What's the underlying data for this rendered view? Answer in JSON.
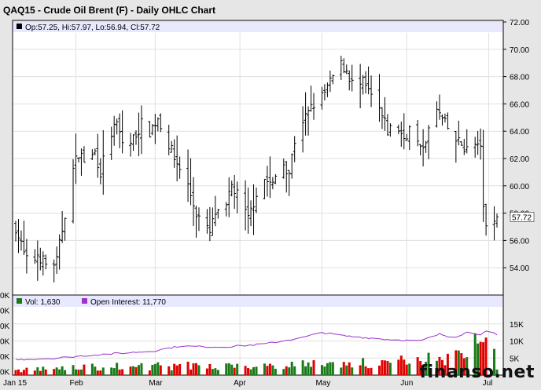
{
  "title": "QAQ15 - Crude Oil Brent (F) - Daily OHLC Chart",
  "price_legend": "Op:57.25, Hi:57.97, Lo:56.94, Cl:57.72",
  "last_price_label": "57.72",
  "volume_legend": "Vol: 1,630",
  "oi_legend": "Open Interest: 11,770",
  "watermark": "finanso.net",
  "colors": {
    "background": "#e6e6e6",
    "panel": "#ffffff",
    "legend_bar": "#e8e8ff",
    "bar": "#000000",
    "volume_up": "#1a7a1a",
    "volume_down": "#e00000",
    "open_interest": "#9933cc",
    "grid": "#e0e0e0"
  },
  "chart_data": {
    "type": "ohlc",
    "price_axis": {
      "min": 52,
      "max": 72,
      "ticks": [
        "54.00",
        "56.00",
        "58.00",
        "60.00",
        "62.00",
        "64.00",
        "66.00",
        "68.00",
        "70.00",
        "72.00"
      ],
      "side": "right"
    },
    "volume_axis": {
      "ticks_right": [
        "5K",
        "10K",
        "15K"
      ],
      "ticks_left": [
        "0K",
        "0K",
        "0K",
        "0K",
        "0K",
        "0K"
      ]
    },
    "x_labels": [
      "Jan 15",
      "Feb",
      "Mar",
      "Apr",
      "May",
      "Jun",
      "Jul"
    ],
    "x_label_days": [
      0,
      22,
      51,
      82,
      112,
      143,
      173
    ],
    "grid": true,
    "legend_position": "top-left",
    "price_anchors": [
      [
        0,
        57.0
      ],
      [
        3,
        55.0
      ],
      [
        5,
        54.0
      ],
      [
        8,
        55.0
      ],
      [
        12,
        54.0
      ],
      [
        15,
        54.5
      ],
      [
        18,
        58.0
      ],
      [
        20,
        60.5
      ],
      [
        23,
        62.5
      ],
      [
        26,
        61.5
      ],
      [
        29,
        62.5
      ],
      [
        31,
        61.0
      ],
      [
        34,
        63.5
      ],
      [
        37,
        64.5
      ],
      [
        40,
        62.5
      ],
      [
        43,
        63.5
      ],
      [
        46,
        64.5
      ],
      [
        49,
        64.0
      ],
      [
        52,
        65.0
      ],
      [
        55,
        63.5
      ],
      [
        58,
        62.0
      ],
      [
        61,
        61.0
      ],
      [
        63,
        60.0
      ],
      [
        66,
        58.0
      ],
      [
        69,
        57.0
      ],
      [
        71,
        56.5
      ],
      [
        73,
        58.0
      ],
      [
        76,
        57.5
      ],
      [
        79,
        60.0
      ],
      [
        82,
        59.0
      ],
      [
        85,
        57.5
      ],
      [
        88,
        59.5
      ],
      [
        91,
        60.5
      ],
      [
        94,
        60.0
      ],
      [
        97,
        62.0
      ],
      [
        100,
        61.0
      ],
      [
        103,
        64.5
      ],
      [
        106,
        65.0
      ],
      [
        109,
        66.0
      ],
      [
        112,
        66.5
      ],
      [
        115,
        67.5
      ],
      [
        118,
        69.0
      ],
      [
        121,
        68.5
      ],
      [
        124,
        67.0
      ],
      [
        127,
        67.5
      ],
      [
        130,
        66.5
      ],
      [
        133,
        65.5
      ],
      [
        136,
        64.0
      ],
      [
        139,
        64.5
      ],
      [
        142,
        63.5
      ],
      [
        145,
        64.5
      ],
      [
        148,
        62.5
      ],
      [
        151,
        64.0
      ],
      [
        154,
        65.5
      ],
      [
        157,
        64.5
      ],
      [
        160,
        63.5
      ],
      [
        163,
        63.0
      ],
      [
        166,
        62.5
      ],
      [
        168,
        63.0
      ],
      [
        170,
        62.5
      ],
      [
        171,
        58.5
      ],
      [
        173,
        56.0
      ],
      [
        175,
        57.0
      ],
      [
        176,
        57.72
      ]
    ],
    "volume_max": 20000,
    "volume_anchors": [
      [
        0,
        1500
      ],
      [
        30,
        2500
      ],
      [
        80,
        3000
      ],
      [
        120,
        3600
      ],
      [
        150,
        4500
      ],
      [
        165,
        7000
      ],
      [
        171,
        12000
      ],
      [
        174,
        17000
      ],
      [
        176,
        1630
      ]
    ],
    "open_interest_anchors": [
      [
        0,
        4500
      ],
      [
        15,
        5000
      ],
      [
        30,
        6000
      ],
      [
        50,
        7000
      ],
      [
        60,
        8500
      ],
      [
        75,
        8200
      ],
      [
        90,
        9000
      ],
      [
        105,
        11000
      ],
      [
        112,
        12500
      ],
      [
        120,
        11500
      ],
      [
        135,
        10500
      ],
      [
        148,
        10000
      ],
      [
        155,
        12000
      ],
      [
        160,
        11000
      ],
      [
        165,
        12500
      ],
      [
        170,
        12000
      ],
      [
        173,
        13000
      ],
      [
        176,
        11770
      ]
    ],
    "total_days": 176
  }
}
